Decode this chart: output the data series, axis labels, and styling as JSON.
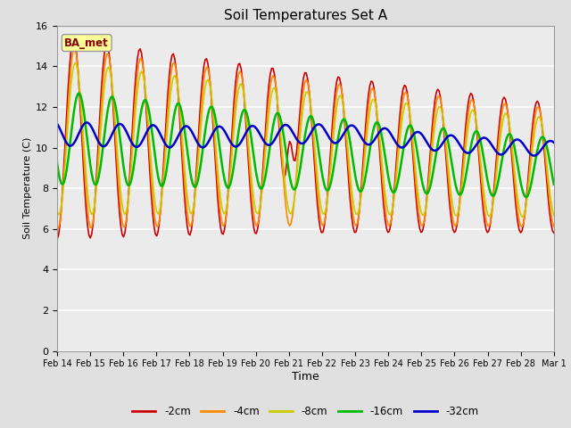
{
  "title": "Soil Temperatures Set A",
  "xlabel": "Time",
  "ylabel": "Soil Temperature (C)",
  "ylim": [
    0,
    16
  ],
  "yticks": [
    0,
    2,
    4,
    6,
    8,
    10,
    12,
    14,
    16
  ],
  "bg_color": "#e0e0e0",
  "plot_bg_color": "#ebebeb",
  "annotation_text": "BA_met",
  "annotation_bg": "#ffff99",
  "annotation_border": "#aaaaaa",
  "annotation_text_color": "#880000",
  "line_colors": {
    "-2cm": "#cc0000",
    "-4cm": "#ff8800",
    "-8cm": "#cccc00",
    "-16cm": "#00bb00",
    "-32cm": "#0000cc"
  },
  "line_widths": {
    "-2cm": 1.2,
    "-4cm": 1.2,
    "-8cm": 1.2,
    "-16cm": 1.8,
    "-32cm": 1.8
  },
  "xtick_labels": [
    "Feb 14",
    "Feb 15",
    "Feb 16",
    "Feb 17",
    "Feb 18",
    "Feb 19",
    "Feb 20",
    "Feb 21",
    "Feb 22",
    "Feb 23",
    "Feb 24",
    "Feb 25",
    "Feb 26",
    "Feb 27",
    "Feb 28",
    "Mar 1"
  ],
  "n_ticks": 16,
  "pts_per_day": 24,
  "total_days": 15
}
